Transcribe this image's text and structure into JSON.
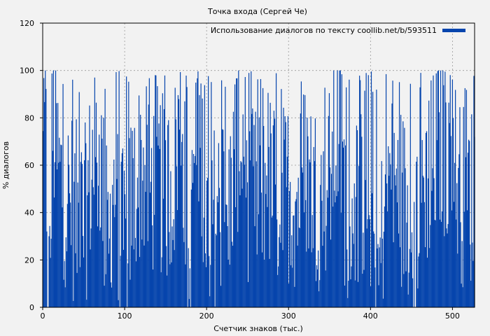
{
  "chart_data": {
    "type": "bar",
    "title": "Точка входа (Сергей Че)",
    "xlabel": "Счетчик знаков (тыс.)",
    "ylabel": "% диалогов",
    "xlim": [
      0,
      527
    ],
    "ylim": [
      0,
      120
    ],
    "xticks": [
      0,
      100,
      200,
      300,
      400,
      500
    ],
    "yticks": [
      0,
      20,
      40,
      60,
      80,
      100,
      120
    ],
    "grid": true,
    "legend_position": "top-right",
    "series": [
      {
        "name": "Использование диалогов по тексту coollib.net/b/593511",
        "color": "#0645ad",
        "profile": [
          {
            "x": 0,
            "y": 62
          },
          {
            "x": 3,
            "y": 80
          },
          {
            "x": 6,
            "y": 10
          },
          {
            "x": 8,
            "y": 5
          },
          {
            "x": 12,
            "y": 78
          },
          {
            "x": 20,
            "y": 55
          },
          {
            "x": 30,
            "y": 45
          },
          {
            "x": 40,
            "y": 40
          },
          {
            "x": 50,
            "y": 35
          },
          {
            "x": 60,
            "y": 60
          },
          {
            "x": 70,
            "y": 65
          },
          {
            "x": 75,
            "y": 40
          },
          {
            "x": 80,
            "y": 20
          },
          {
            "x": 85,
            "y": 55
          },
          {
            "x": 90,
            "y": 45
          },
          {
            "x": 95,
            "y": 30
          },
          {
            "x": 100,
            "y": 25
          },
          {
            "x": 105,
            "y": 40
          },
          {
            "x": 115,
            "y": 55
          },
          {
            "x": 120,
            "y": 60
          },
          {
            "x": 130,
            "y": 50
          },
          {
            "x": 140,
            "y": 55
          },
          {
            "x": 150,
            "y": 48
          },
          {
            "x": 160,
            "y": 55
          },
          {
            "x": 165,
            "y": 75
          },
          {
            "x": 170,
            "y": 80
          },
          {
            "x": 175,
            "y": 30
          },
          {
            "x": 178,
            "y": 8
          },
          {
            "x": 180,
            "y": 2
          },
          {
            "x": 183,
            "y": 60
          },
          {
            "x": 190,
            "y": 75
          },
          {
            "x": 195,
            "y": 60
          },
          {
            "x": 200,
            "y": 35
          },
          {
            "x": 210,
            "y": 40
          },
          {
            "x": 220,
            "y": 45
          },
          {
            "x": 225,
            "y": 30
          },
          {
            "x": 230,
            "y": 55
          },
          {
            "x": 240,
            "y": 75
          },
          {
            "x": 245,
            "y": 70
          },
          {
            "x": 250,
            "y": 50
          },
          {
            "x": 260,
            "y": 45
          },
          {
            "x": 270,
            "y": 55
          },
          {
            "x": 280,
            "y": 50
          },
          {
            "x": 290,
            "y": 45
          },
          {
            "x": 300,
            "y": 50
          },
          {
            "x": 310,
            "y": 45
          },
          {
            "x": 320,
            "y": 60
          },
          {
            "x": 330,
            "y": 50
          },
          {
            "x": 340,
            "y": 45
          },
          {
            "x": 350,
            "y": 55
          },
          {
            "x": 360,
            "y": 75
          },
          {
            "x": 365,
            "y": 60
          },
          {
            "x": 370,
            "y": 40
          },
          {
            "x": 380,
            "y": 45
          },
          {
            "x": 390,
            "y": 50
          },
          {
            "x": 400,
            "y": 45
          },
          {
            "x": 405,
            "y": 20
          },
          {
            "x": 410,
            "y": 10
          },
          {
            "x": 415,
            "y": 40
          },
          {
            "x": 420,
            "y": 55
          },
          {
            "x": 430,
            "y": 50
          },
          {
            "x": 440,
            "y": 45
          },
          {
            "x": 450,
            "y": 30
          },
          {
            "x": 453,
            "y": 5
          },
          {
            "x": 456,
            "y": 40
          },
          {
            "x": 465,
            "y": 55
          },
          {
            "x": 475,
            "y": 60
          },
          {
            "x": 485,
            "y": 70
          },
          {
            "x": 495,
            "y": 65
          },
          {
            "x": 505,
            "y": 55
          },
          {
            "x": 515,
            "y": 45
          },
          {
            "x": 520,
            "y": 50
          },
          {
            "x": 527,
            "y": 45
          }
        ]
      }
    ]
  }
}
